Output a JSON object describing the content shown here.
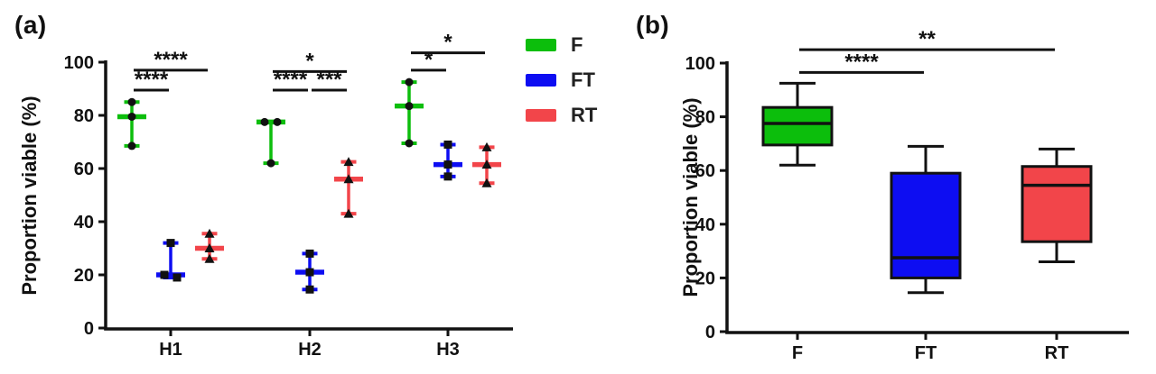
{
  "figure": {
    "panel_a_label": "(a)",
    "panel_b_label": "(b)"
  },
  "legend": {
    "items": [
      {
        "label": "F",
        "color": "#0cbe0c"
      },
      {
        "label": "FT",
        "color": "#0d0df2"
      },
      {
        "label": "RT",
        "color": "#f2454a"
      }
    ]
  },
  "chart_data": [
    {
      "panel": "a",
      "type": "scatter",
      "subtype": "grouped-scatter-with-median-and-range",
      "ylabel": "Proportion viable (%)",
      "ylim": [
        0,
        100
      ],
      "yticks": [
        0,
        20,
        40,
        60,
        80,
        100
      ],
      "grid": false,
      "categories": [
        "H1",
        "H2",
        "H3"
      ],
      "series": [
        {
          "name": "F",
          "color": "#0cbe0c",
          "marker": "circle",
          "points": [
            [
              [
                85,
                0
              ],
              [
                79.5,
                0
              ],
              [
                68.5,
                0
              ]
            ],
            [
              [
                77.5,
                -7
              ],
              [
                77.5,
                7
              ],
              [
                62,
                0
              ]
            ],
            [
              [
                92.5,
                0
              ],
              [
                83.5,
                0
              ],
              [
                69.5,
                0
              ]
            ]
          ],
          "medians": [
            79.5,
            77.5,
            83.5
          ]
        },
        {
          "name": "FT",
          "color": "#0d0df2",
          "marker": "square",
          "points": [
            [
              [
                32,
                0
              ],
              [
                20,
                -7
              ],
              [
                19,
                7
              ]
            ],
            [
              [
                28,
                0
              ],
              [
                21,
                0
              ],
              [
                14.5,
                0
              ]
            ],
            [
              [
                69,
                0
              ],
              [
                61.5,
                0
              ],
              [
                57,
                0
              ]
            ]
          ],
          "medians": [
            20,
            21,
            61.5
          ]
        },
        {
          "name": "RT",
          "color": "#f2454a",
          "marker": "triangle",
          "points": [
            [
              [
                35.5,
                0
              ],
              [
                30,
                0
              ],
              [
                26,
                0
              ]
            ],
            [
              [
                62.5,
                0
              ],
              [
                56,
                0
              ],
              [
                43,
                0
              ]
            ],
            [
              [
                68,
                0
              ],
              [
                61.5,
                0
              ],
              [
                54.5,
                0
              ]
            ]
          ],
          "medians": [
            30,
            56,
            61.5
          ]
        }
      ],
      "error_bars": "min-to-max",
      "significance": [
        {
          "category": "H1",
          "series_from": "F",
          "series_to": "FT",
          "label": "****",
          "y": 89.5
        },
        {
          "category": "H1",
          "series_from": "F",
          "series_to": "RT",
          "label": "****",
          "y": 97
        },
        {
          "category": "H2",
          "series_from": "F",
          "series_to": "FT",
          "label": "****",
          "y": 89.5
        },
        {
          "category": "H2",
          "series_from": "FT",
          "series_to": "RT",
          "label": "***",
          "y": 89.5
        },
        {
          "category": "H2",
          "series_from": "F",
          "series_to": "RT",
          "label": "*",
          "y": 96.5
        },
        {
          "category": "H3",
          "series_from": "F",
          "series_to": "FT",
          "label": "*",
          "y": 97
        },
        {
          "category": "H3",
          "series_from": "F",
          "series_to": "RT",
          "label": "*",
          "y": 103.5
        }
      ]
    },
    {
      "panel": "b",
      "type": "box",
      "ylabel": "Proportion viable (%)",
      "ylim": [
        0,
        100
      ],
      "yticks": [
        0,
        20,
        40,
        60,
        80,
        100
      ],
      "grid": false,
      "categories": [
        "F",
        "FT",
        "RT"
      ],
      "boxes": [
        {
          "name": "F",
          "color": "#0cbe0c",
          "whisker_min": 62,
          "q1": 69.5,
          "median": 77.5,
          "q3": 83.5,
          "whisker_max": 92.5
        },
        {
          "name": "FT",
          "color": "#0d0df2",
          "whisker_min": 14.5,
          "q1": 20,
          "median": 27.5,
          "q3": 59,
          "whisker_max": 69
        },
        {
          "name": "RT",
          "color": "#f2454a",
          "whisker_min": 26,
          "q1": 33.5,
          "median": 54.5,
          "q3": 61.5,
          "whisker_max": 68
        }
      ],
      "significance": [
        {
          "category_from": "F",
          "category_to": "FT",
          "label": "****",
          "y": 96.5
        },
        {
          "category_from": "F",
          "category_to": "RT",
          "label": "**",
          "y": 105
        }
      ]
    }
  ]
}
